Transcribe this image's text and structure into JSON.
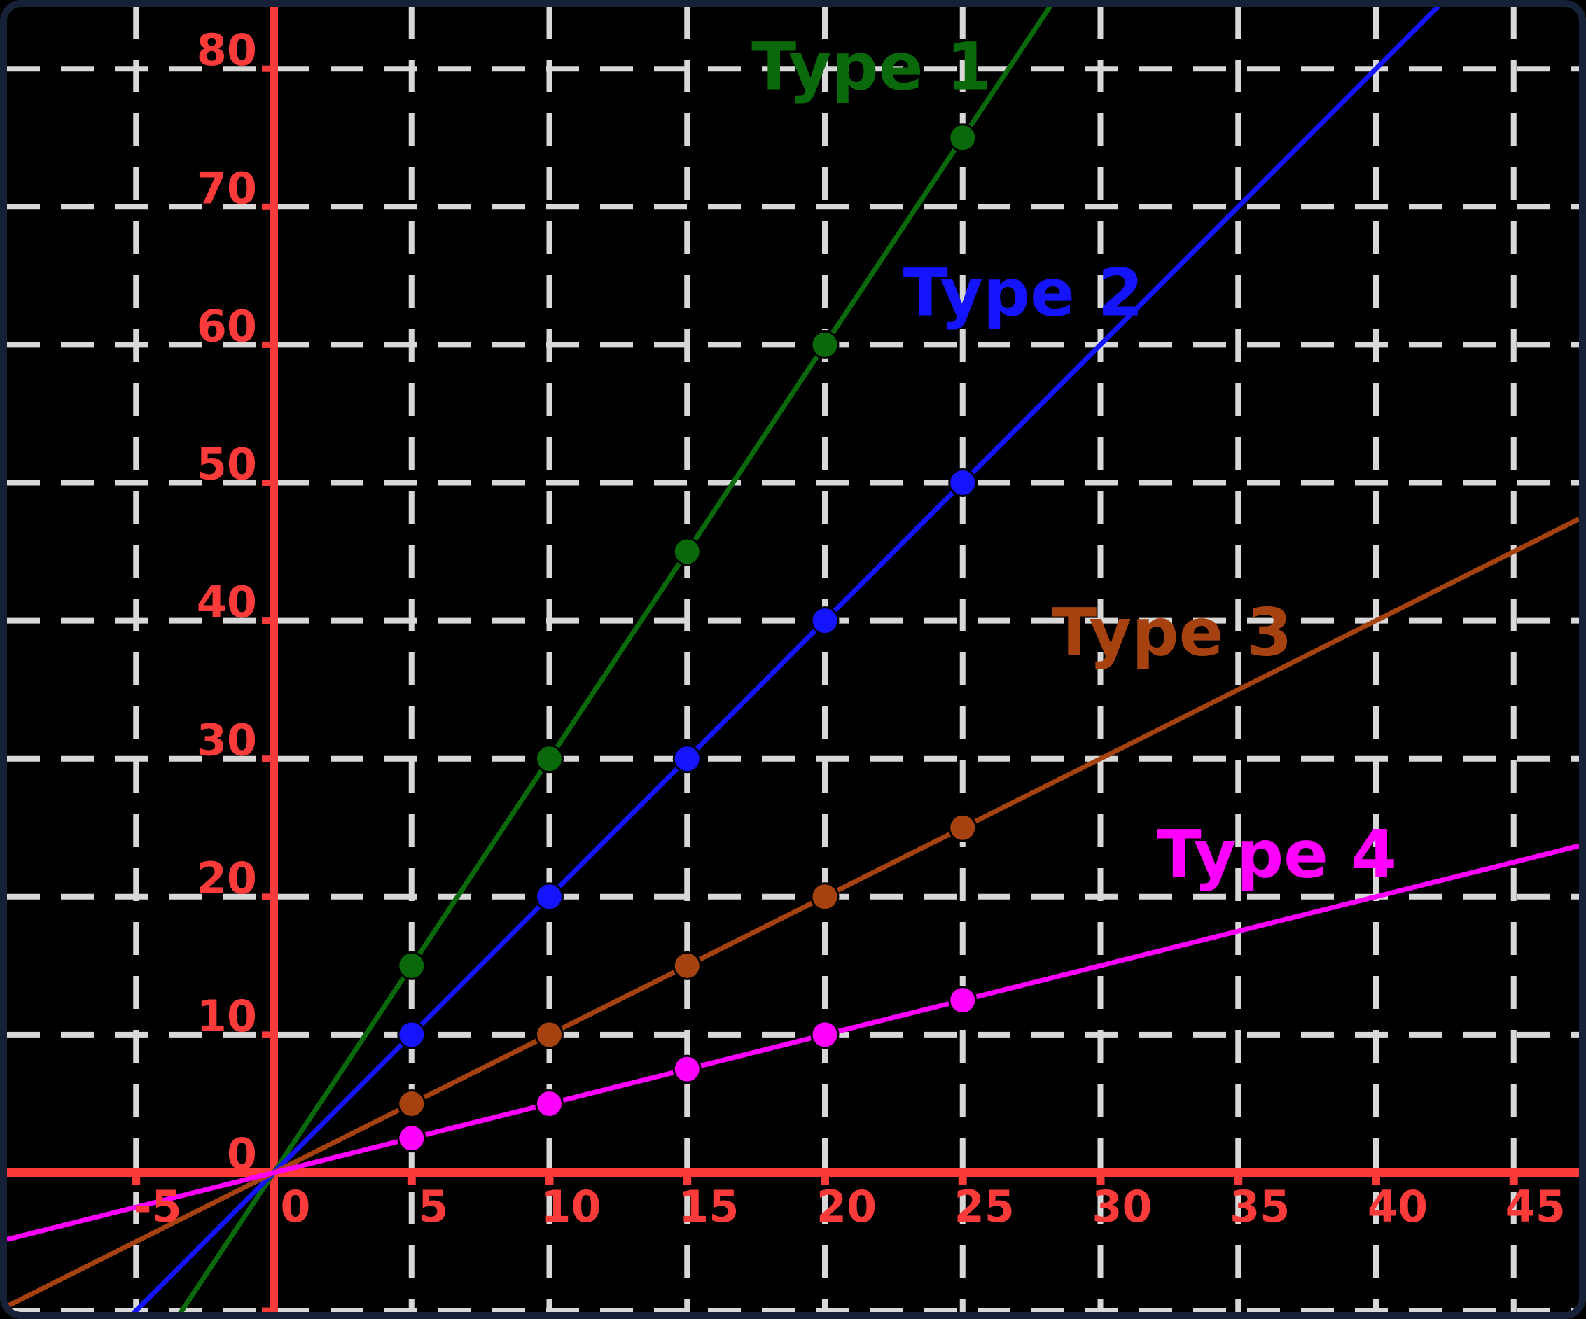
{
  "figure": {
    "background": "#000000",
    "border_color": "#162138"
  },
  "chart_data": {
    "type": "line",
    "title": "",
    "xlabel": "",
    "ylabel": "",
    "legend_position": "inline-annotations",
    "axes": {
      "axis_color": "#fb3a3a",
      "grid": true,
      "grid_color": "#d8d8d8",
      "grid_style": "dashed",
      "xlim": [
        -9.7,
        47.4
      ],
      "ylim": [
        -10.2,
        84.6
      ],
      "x_ticks": [
        -5,
        0,
        5,
        10,
        15,
        20,
        25,
        30,
        35,
        40,
        45
      ],
      "x_tick_labels": [
        "-5",
        "0",
        "5",
        "10",
        "15",
        "20",
        "25",
        "30",
        "35",
        "40",
        "45"
      ],
      "y_ticks": [
        0,
        10,
        20,
        30,
        40,
        50,
        60,
        70,
        80
      ],
      "y_tick_labels": [
        "0",
        "10",
        "20",
        "30",
        "40",
        "50",
        "60",
        "70",
        "80"
      ],
      "y_gridlines": [
        -10,
        0,
        10,
        20,
        30,
        40,
        50,
        60,
        70,
        80
      ],
      "tick_label_color": "#fb3a3a"
    },
    "series": [
      {
        "name": "Type 1",
        "color": "#0a690a",
        "slope": 3,
        "intercept": 0,
        "points": [
          [
            5,
            15
          ],
          [
            10,
            30
          ],
          [
            15,
            45
          ],
          [
            20,
            60
          ],
          [
            25,
            75
          ]
        ],
        "label_anchor": [
          21.7,
          80.2
        ]
      },
      {
        "name": "Type 2",
        "color": "#1414ff",
        "slope": 2,
        "intercept": 0,
        "points": [
          [
            5,
            10
          ],
          [
            10,
            20
          ],
          [
            15,
            30
          ],
          [
            20,
            40
          ],
          [
            25,
            50
          ]
        ],
        "label_anchor": [
          27.2,
          63.8
        ]
      },
      {
        "name": "Type 3",
        "color": "#a5420f",
        "slope": 1,
        "intercept": 0,
        "points": [
          [
            5,
            5
          ],
          [
            10,
            10
          ],
          [
            15,
            15
          ],
          [
            20,
            20
          ],
          [
            25,
            25
          ]
        ],
        "label_anchor": [
          32.6,
          39.2
        ]
      },
      {
        "name": "Type 4",
        "color": "#ff00ff",
        "slope": 0.5,
        "intercept": 0,
        "points": [
          [
            5,
            2.5
          ],
          [
            10,
            5
          ],
          [
            15,
            7.5
          ],
          [
            20,
            10
          ],
          [
            25,
            12.5
          ]
        ],
        "label_anchor": [
          36.4,
          23.1
        ]
      }
    ]
  }
}
